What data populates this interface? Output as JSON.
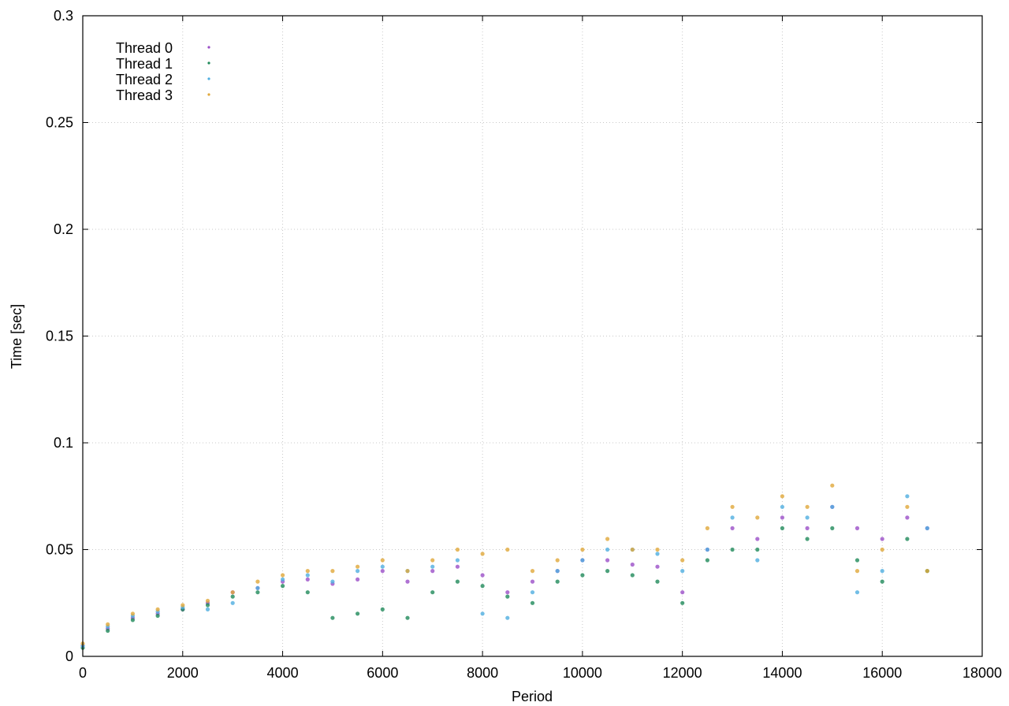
{
  "chart_data": {
    "type": "scatter",
    "title": "",
    "xlabel": "Period",
    "ylabel": "Time [sec]",
    "xlim": [
      0,
      18000
    ],
    "ylim": [
      0,
      0.3
    ],
    "x_ticks": [
      "0",
      "2000",
      "4000",
      "6000",
      "8000",
      "10000",
      "12000",
      "14000",
      "16000",
      "18000"
    ],
    "y_ticks": [
      "0",
      "0.05",
      "0.1",
      "0.15",
      "0.2",
      "0.25",
      "0.3"
    ],
    "grid": true,
    "legend_position": "top-left",
    "series": [
      {
        "name": "Thread 0",
        "color": "#9b4fc8",
        "x": [
          0,
          500,
          1000,
          1500,
          2000,
          2500,
          3000,
          3500,
          4000,
          4500,
          5000,
          5500,
          6000,
          6500,
          7000,
          7500,
          8000,
          8500,
          9000,
          9500,
          10000,
          10500,
          11000,
          11500,
          12000,
          12500,
          13000,
          13500,
          14000,
          14500,
          15000,
          15500,
          16000,
          16500,
          16900
        ],
        "y": [
          0.005,
          0.013,
          0.018,
          0.02,
          0.022,
          0.025,
          0.03,
          0.032,
          0.035,
          0.036,
          0.034,
          0.036,
          0.04,
          0.035,
          0.04,
          0.042,
          0.038,
          0.03,
          0.035,
          0.04,
          0.045,
          0.045,
          0.043,
          0.042,
          0.03,
          0.05,
          0.06,
          0.055,
          0.065,
          0.06,
          0.07,
          0.06,
          0.055,
          0.065,
          0.06
        ]
      },
      {
        "name": "Thread 1",
        "color": "#1f8a5a",
        "x": [
          0,
          500,
          1000,
          1500,
          2000,
          2500,
          3000,
          3500,
          4000,
          4500,
          5000,
          5500,
          6000,
          6500,
          7000,
          7500,
          8000,
          8500,
          9000,
          9500,
          10000,
          10500,
          11000,
          11500,
          12000,
          12500,
          13000,
          13500,
          14000,
          14500,
          15000,
          15500,
          16000,
          16500,
          16900
        ],
        "y": [
          0.004,
          0.012,
          0.017,
          0.019,
          0.022,
          0.024,
          0.028,
          0.03,
          0.033,
          0.03,
          0.018,
          0.02,
          0.022,
          0.018,
          0.03,
          0.035,
          0.033,
          0.028,
          0.025,
          0.035,
          0.038,
          0.04,
          0.038,
          0.035,
          0.025,
          0.045,
          0.05,
          0.05,
          0.06,
          0.055,
          0.06,
          0.045,
          0.035,
          0.055,
          0.04
        ]
      },
      {
        "name": "Thread 2",
        "color": "#4faee0",
        "x": [
          0,
          500,
          1000,
          1500,
          2000,
          2500,
          3000,
          3500,
          4000,
          4500,
          5000,
          5500,
          6000,
          6500,
          7000,
          7500,
          8000,
          8500,
          9000,
          9500,
          10000,
          10500,
          11000,
          11500,
          12000,
          12500,
          13000,
          13500,
          14000,
          14500,
          15000,
          15500,
          16000,
          16500,
          16900
        ],
        "y": [
          0.005,
          0.014,
          0.019,
          0.021,
          0.023,
          0.022,
          0.025,
          0.032,
          0.036,
          0.038,
          0.035,
          0.04,
          0.042,
          0.04,
          0.042,
          0.045,
          0.02,
          0.018,
          0.03,
          0.04,
          0.045,
          0.05,
          0.05,
          0.048,
          0.04,
          0.05,
          0.065,
          0.045,
          0.07,
          0.065,
          0.07,
          0.03,
          0.04,
          0.075,
          0.06
        ]
      },
      {
        "name": "Thread 3",
        "color": "#e0a83a",
        "x": [
          0,
          500,
          1000,
          1500,
          2000,
          2500,
          3000,
          3500,
          4000,
          4500,
          5000,
          5500,
          6000,
          6500,
          7000,
          7500,
          8000,
          8500,
          9000,
          9500,
          10000,
          10500,
          11000,
          11500,
          12000,
          12500,
          13000,
          13500,
          14000,
          14500,
          15000,
          15500,
          16000,
          16500,
          16900
        ],
        "y": [
          0.006,
          0.015,
          0.02,
          0.022,
          0.024,
          0.026,
          0.03,
          0.035,
          0.038,
          0.04,
          0.04,
          0.042,
          0.045,
          0.04,
          0.045,
          0.05,
          0.048,
          0.05,
          0.04,
          0.045,
          0.05,
          0.055,
          0.05,
          0.05,
          0.045,
          0.06,
          0.07,
          0.065,
          0.075,
          0.07,
          0.08,
          0.04,
          0.05,
          0.07,
          0.04
        ]
      }
    ]
  }
}
